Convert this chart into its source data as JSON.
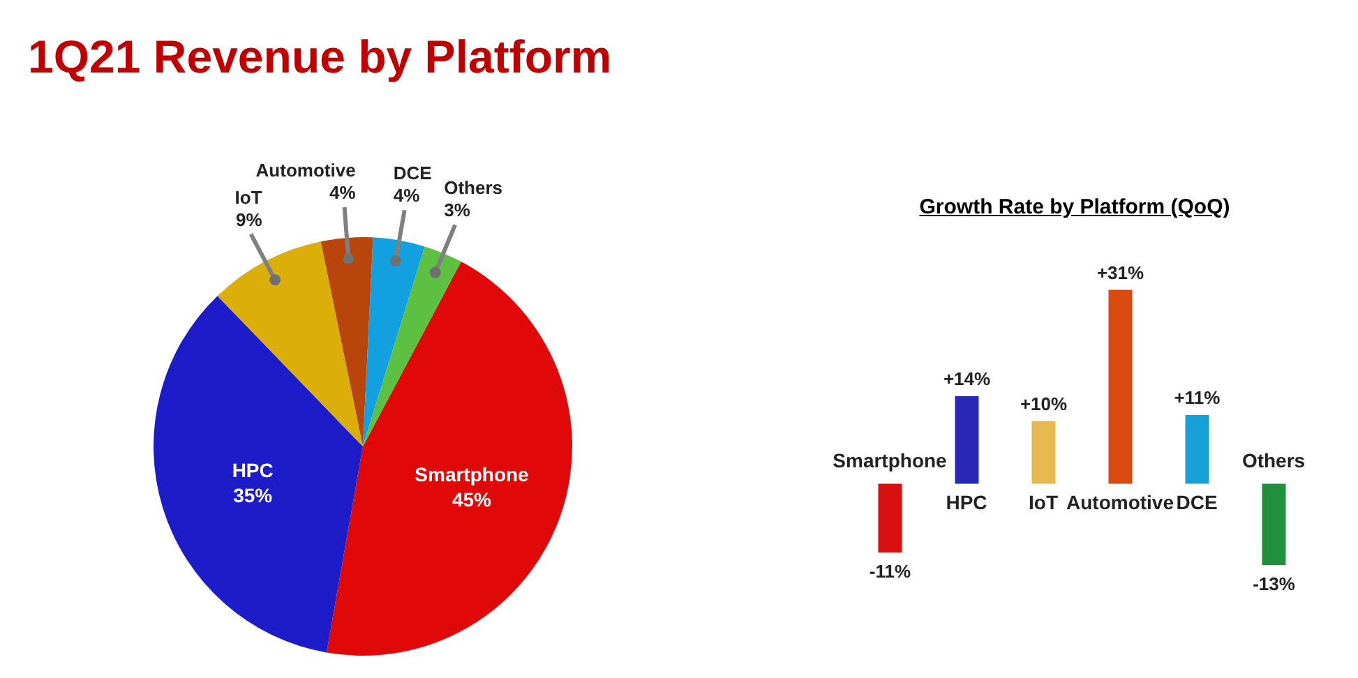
{
  "chart_data": [
    {
      "type": "pie",
      "title": "1Q21 Revenue by Platform",
      "categories": [
        "Smartphone",
        "HPC",
        "IoT",
        "Automotive",
        "DCE",
        "Others"
      ],
      "values": [
        45,
        35,
        9,
        4,
        4,
        3
      ],
      "colors": [
        "#e00808",
        "#1c1cc8",
        "#dcae0a",
        "#b8460c",
        "#12a0e0",
        "#5cc040"
      ],
      "value_labels": [
        "45%",
        "35%",
        "9%",
        "4%",
        "4%",
        "3%"
      ]
    },
    {
      "type": "bar",
      "title": "Growth Rate by Platform (QoQ)",
      "categories": [
        "Smartphone",
        "HPC",
        "IoT",
        "Automotive",
        "DCE",
        "Others"
      ],
      "values": [
        -11,
        14,
        10,
        31,
        11,
        -13
      ],
      "colors": [
        "#d81010",
        "#2828b8",
        "#e8b850",
        "#d84a10",
        "#18a0d8",
        "#20903c"
      ],
      "value_labels": [
        "-11%",
        "+14%",
        "+10%",
        "+31%",
        "+11%",
        "-13%"
      ],
      "tick_labels": "x"
    }
  ]
}
